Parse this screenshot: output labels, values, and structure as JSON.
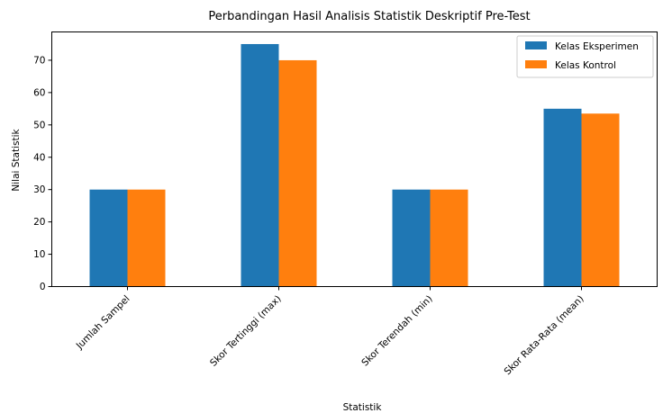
{
  "chart_data": {
    "type": "bar",
    "title": "Perbandingan Hasil Analisis Statistik Deskriptif Pre-Test",
    "xlabel": "Statistik",
    "ylabel": "Nilai Statistik",
    "categories": [
      "Jumlah Sampel",
      "Skor Tertinggi (max)",
      "Skor Terendah (min)",
      "Skor Rata-Rata (mean)"
    ],
    "series": [
      {
        "name": "Kelas Eksperimen",
        "color": "#1f77b4",
        "values": [
          30,
          75,
          30,
          55
        ]
      },
      {
        "name": "Kelas Kontrol",
        "color": "#ff7f0e",
        "values": [
          30,
          70,
          30,
          53.5
        ]
      }
    ],
    "ylim": [
      0,
      78.75
    ],
    "yticks": [
      0,
      10,
      20,
      30,
      40,
      50,
      60,
      70
    ],
    "grid": false,
    "legend": "top-right"
  }
}
